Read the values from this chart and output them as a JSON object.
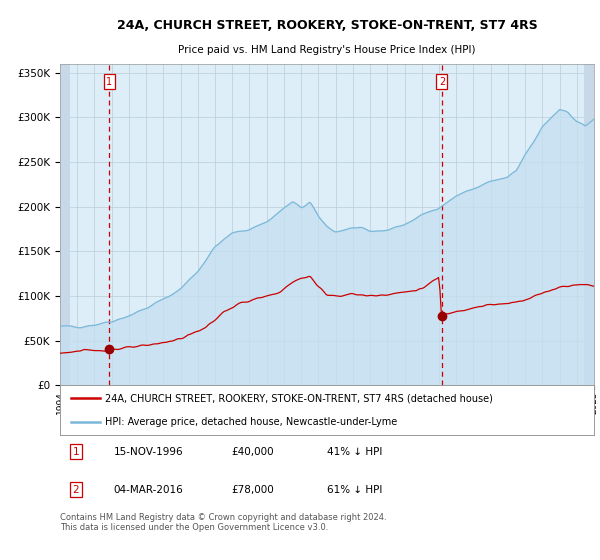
{
  "title1": "24A, CHURCH STREET, ROOKERY, STOKE-ON-TRENT, ST7 4RS",
  "title2": "Price paid vs. HM Land Registry's House Price Index (HPI)",
  "legend_line1": "24A, CHURCH STREET, ROOKERY, STOKE-ON-TRENT, ST7 4RS (detached house)",
  "legend_line2": "HPI: Average price, detached house, Newcastle-under-Lyme",
  "footnote": "Contains HM Land Registry data © Crown copyright and database right 2024.\nThis data is licensed under the Open Government Licence v3.0.",
  "sale1_date": "15-NOV-1996",
  "sale1_price": "£40,000",
  "sale1_hpi": "41% ↓ HPI",
  "sale1_year": 1996.87,
  "sale1_value": 40000,
  "sale2_date": "04-MAR-2016",
  "sale2_price": "£78,000",
  "sale2_hpi": "61% ↓ HPI",
  "sale2_year": 2016.17,
  "sale2_value": 78000,
  "hpi_color": "#7ab8d9",
  "hpi_fill_color": "#c5dff0",
  "red_line_color": "#cc0000",
  "marker_color": "#990000",
  "dashed_line_color": "#cc0000",
  "bg_color": "#deeef8",
  "hatch_bg_color": "#c8d8e8",
  "grid_color": "#b8ccd8",
  "ylim_min": 0,
  "ylim_max": 360000,
  "hpi_anchors_years": [
    1994.0,
    1995.0,
    1996.0,
    1997.0,
    1998.0,
    1999.0,
    2000.0,
    2001.0,
    2002.0,
    2003.0,
    2004.0,
    2005.0,
    2006.0,
    2007.0,
    2007.5,
    2008.0,
    2008.5,
    2009.0,
    2009.5,
    2010.0,
    2011.0,
    2012.0,
    2013.0,
    2014.0,
    2015.0,
    2016.0,
    2016.5,
    2017.0,
    2018.0,
    2019.0,
    2020.0,
    2020.5,
    2021.0,
    2021.5,
    2022.0,
    2022.5,
    2023.0,
    2023.5,
    2024.0,
    2024.5,
    2025.0
  ],
  "hpi_anchors_vals": [
    65000,
    66000,
    68000,
    72000,
    78000,
    86000,
    96000,
    108000,
    128000,
    155000,
    170000,
    175000,
    183000,
    198000,
    205000,
    198000,
    205000,
    188000,
    178000,
    172000,
    176000,
    172000,
    174000,
    180000,
    190000,
    200000,
    205000,
    212000,
    220000,
    228000,
    232000,
    240000,
    258000,
    272000,
    290000,
    300000,
    310000,
    305000,
    295000,
    290000,
    298000
  ],
  "red_anchors_years": [
    1994.0,
    1995.0,
    1996.0,
    1996.87,
    1997.5,
    1999.0,
    2001.0,
    2002.5,
    2003.5,
    2004.5,
    2005.5,
    2006.5,
    2007.0,
    2007.5,
    2008.0,
    2008.5,
    2009.0,
    2009.5,
    2010.0,
    2011.0,
    2012.0,
    2013.0,
    2014.0,
    2015.0,
    2015.8,
    2016.0,
    2016.17,
    2016.5,
    2017.0,
    2018.0,
    2019.0,
    2020.0,
    2021.0,
    2022.0,
    2023.0,
    2024.0,
    2025.0
  ],
  "red_anchors_vals": [
    36000,
    38000,
    39000,
    40000,
    41000,
    44000,
    52000,
    65000,
    82000,
    92000,
    97000,
    102000,
    108000,
    115000,
    120000,
    122000,
    110000,
    102000,
    100000,
    102000,
    100000,
    102000,
    104000,
    108000,
    118000,
    121000,
    78000,
    80000,
    83000,
    87000,
    90000,
    91000,
    96000,
    103000,
    110000,
    113000,
    112000
  ]
}
